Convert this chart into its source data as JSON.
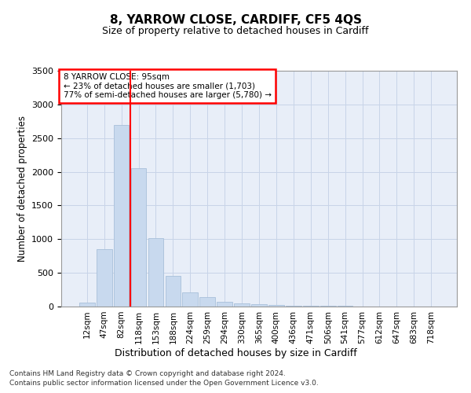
{
  "title": "8, YARROW CLOSE, CARDIFF, CF5 4QS",
  "subtitle": "Size of property relative to detached houses in Cardiff",
  "xlabel": "Distribution of detached houses by size in Cardiff",
  "ylabel": "Number of detached properties",
  "footnote1": "Contains HM Land Registry data © Crown copyright and database right 2024.",
  "footnote2": "Contains public sector information licensed under the Open Government Licence v3.0.",
  "categories": [
    "12sqm",
    "47sqm",
    "82sqm",
    "118sqm",
    "153sqm",
    "188sqm",
    "224sqm",
    "259sqm",
    "294sqm",
    "330sqm",
    "365sqm",
    "400sqm",
    "436sqm",
    "471sqm",
    "506sqm",
    "541sqm",
    "577sqm",
    "612sqm",
    "647sqm",
    "683sqm",
    "718sqm"
  ],
  "values": [
    60,
    850,
    2700,
    2050,
    1010,
    450,
    210,
    135,
    70,
    45,
    30,
    20,
    15,
    10,
    8,
    6,
    5,
    4,
    3,
    2,
    1
  ],
  "bar_color": "#c8d9ee",
  "bar_edge_color": "#a8c0da",
  "grid_color": "#c8d4e8",
  "background_color": "#e8eef8",
  "vline_after_index": 2,
  "vline_color": "red",
  "annotation_title": "8 YARROW CLOSE: 95sqm",
  "annotation_line1": "← 23% of detached houses are smaller (1,703)",
  "annotation_line2": "77% of semi-detached houses are larger (5,780) →",
  "annotation_box_color": "white",
  "annotation_box_edge": "red",
  "ylim": [
    0,
    3500
  ],
  "yticks": [
    0,
    500,
    1000,
    1500,
    2000,
    2500,
    3000,
    3500
  ]
}
